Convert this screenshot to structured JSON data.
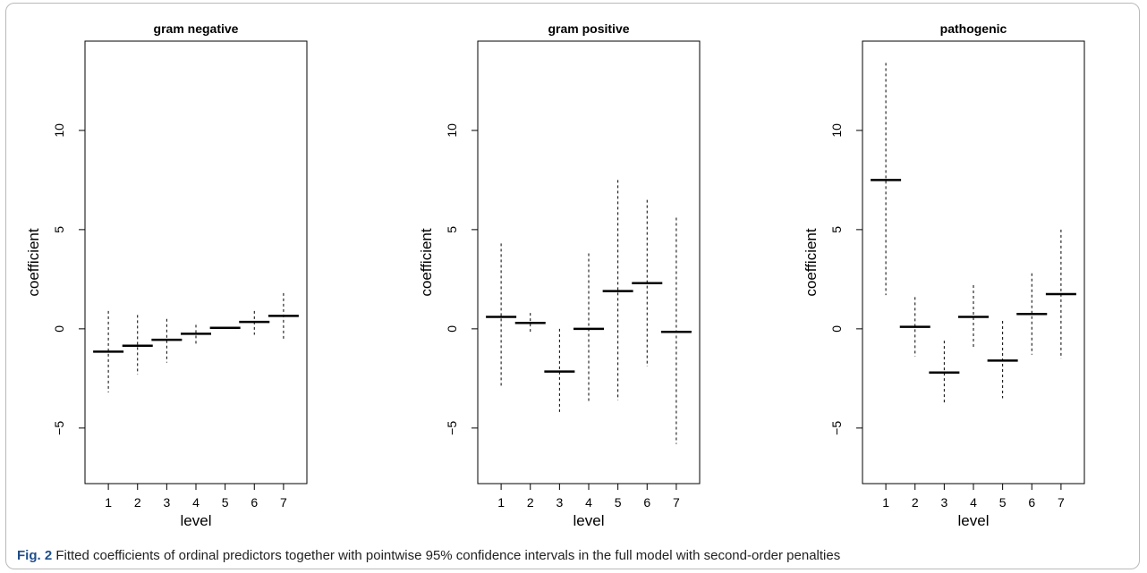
{
  "figure": {
    "caption_label": "Fig. 2",
    "caption_text": "Fitted coefficients of ordinal predictors together with pointwise 95% confidence intervals in the full model with second-order penalties"
  },
  "chart_data": [
    {
      "type": "interval",
      "title": "gram negative",
      "xlabel": "level",
      "ylabel": "coefficient",
      "x": [
        1,
        2,
        3,
        4,
        5,
        6,
        7
      ],
      "x_ticks": [
        "1",
        "2",
        "3",
        "4",
        "5",
        "6",
        "7"
      ],
      "xlim": [
        0.2,
        7.8
      ],
      "ylim": [
        -7.8,
        14.5
      ],
      "y_ticks": [
        -5,
        0,
        5,
        10
      ],
      "estimate": [
        -1.15,
        -0.85,
        -0.55,
        -0.25,
        0.05,
        0.35,
        0.65
      ],
      "lower": [
        -3.2,
        -2.3,
        -1.7,
        -0.8,
        0.0,
        -0.3,
        -0.5
      ],
      "upper": [
        0.9,
        0.7,
        0.5,
        0.2,
        0.1,
        0.9,
        1.8
      ]
    },
    {
      "type": "interval",
      "title": "gram positive",
      "xlabel": "level",
      "ylabel": "coefficient",
      "x": [
        1,
        2,
        3,
        4,
        5,
        6,
        7
      ],
      "x_ticks": [
        "1",
        "2",
        "3",
        "4",
        "5",
        "6",
        "7"
      ],
      "xlim": [
        0.2,
        7.8
      ],
      "ylim": [
        -7.8,
        14.5
      ],
      "y_ticks": [
        -5,
        0,
        5,
        10
      ],
      "estimate": [
        0.6,
        0.3,
        -2.15,
        0.0,
        1.9,
        2.3,
        -0.15
      ],
      "lower": [
        -2.9,
        -0.2,
        -4.2,
        -3.7,
        -3.6,
        -1.9,
        -5.8
      ],
      "upper": [
        4.3,
        0.8,
        0.0,
        3.8,
        7.5,
        6.5,
        5.6
      ]
    },
    {
      "type": "interval",
      "title": "pathogenic",
      "xlabel": "level",
      "ylabel": "coefficient",
      "x": [
        1,
        2,
        3,
        4,
        5,
        6,
        7
      ],
      "x_ticks": [
        "1",
        "2",
        "3",
        "4",
        "5",
        "6",
        "7"
      ],
      "xlim": [
        0.2,
        7.8
      ],
      "ylim": [
        -7.8,
        14.5
      ],
      "y_ticks": [
        -5,
        0,
        5,
        10
      ],
      "estimate": [
        7.5,
        0.1,
        -2.2,
        0.6,
        -1.6,
        0.75,
        1.75
      ],
      "lower": [
        1.7,
        -1.4,
        -3.8,
        -1.0,
        -3.5,
        -1.3,
        -1.5
      ],
      "upper": [
        13.4,
        1.6,
        -0.6,
        2.2,
        0.4,
        2.8,
        5.0
      ]
    }
  ]
}
